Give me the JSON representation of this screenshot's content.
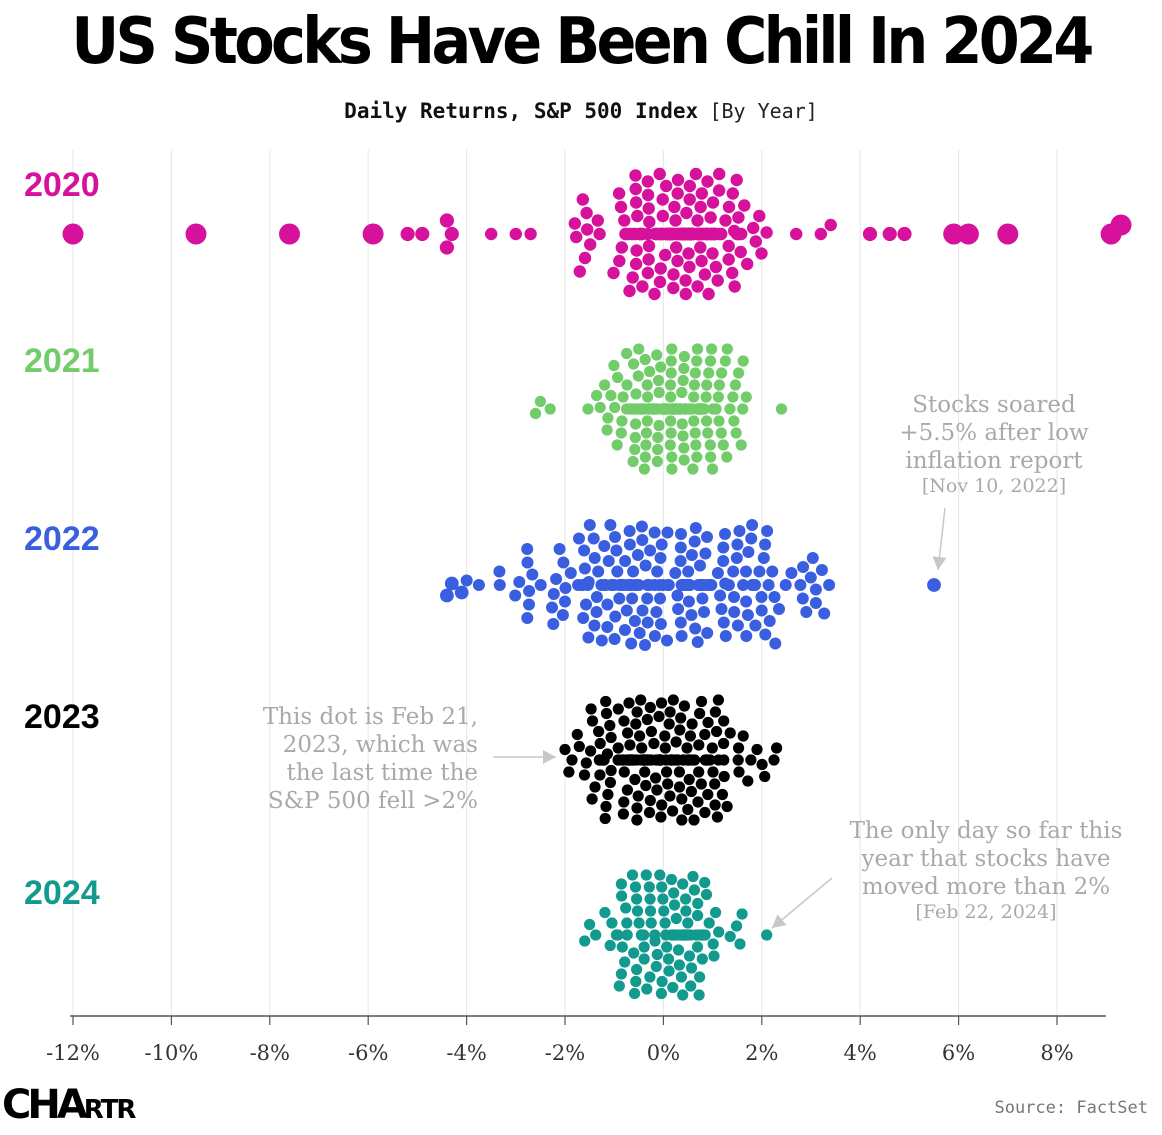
{
  "title": "US Stocks Have Been Chill In 2024",
  "subtitle": "Daily Returns, S&P 500 Index",
  "subtitle_note": "[By Year]",
  "source": "Source: FactSet",
  "logo": {
    "text_big": "CHA",
    "text_small": "RTR"
  },
  "colors": {
    "2020": "#d6119b",
    "2021": "#72cc6a",
    "2022": "#3a5ee0",
    "2023": "#000000",
    "2024": "#119a8d",
    "annotation": "#a9a9a9",
    "grid": "#e9e9e9"
  },
  "chart_data": {
    "type": "beeswarm",
    "xlabel": "",
    "ylabel": "",
    "xlim": [
      -12,
      9.2
    ],
    "x_ticks": [
      -12,
      -10,
      -8,
      -6,
      -4,
      -2,
      0,
      2,
      4,
      6,
      8
    ],
    "x_tick_labels": [
      "-12%",
      "-10%",
      "-8%",
      "-6%",
      "-4%",
      "-2%",
      "0%",
      "2%",
      "4%",
      "6%",
      "8%"
    ],
    "grid": "vertical",
    "series": [
      {
        "name": "2020",
        "distribution": {
          "mean": 0.25,
          "sd": 0.9,
          "count": 200
        },
        "extremes": [
          -12.0,
          -9.5,
          -7.6,
          -5.9,
          -5.2,
          -4.9,
          -4.4,
          -4.4,
          -4.3,
          -3.5,
          -3.0,
          -2.7,
          -1.7,
          -1.8,
          2.7,
          3.2,
          3.4,
          4.2,
          4.6,
          4.9,
          5.9,
          6.2,
          7.0,
          9.3,
          9.1
        ]
      },
      {
        "name": "2021",
        "distribution": {
          "mean": 0.15,
          "sd": 0.7,
          "count": 210
        },
        "extremes": [
          -2.6,
          -2.5,
          -2.3,
          2.4
        ]
      },
      {
        "name": "2022",
        "distribution": {
          "mean": -0.1,
          "sd": 1.5,
          "count": 205
        },
        "extremes": [
          -4.4,
          -4.3,
          -4.1,
          3.1,
          3.1,
          5.5
        ]
      },
      {
        "name": "2023",
        "distribution": {
          "mean": 0.05,
          "sd": 0.85,
          "count": 200
        },
        "extremes": [
          -2.0,
          2.3
        ]
      },
      {
        "name": "2024",
        "distribution": {
          "mean": 0.05,
          "sd": 0.65,
          "count": 110
        },
        "extremes": [
          -1.6,
          -1.5,
          1.6,
          2.1
        ]
      }
    ],
    "annotations": [
      {
        "series": "2022",
        "lines": [
          "Stocks soared",
          "+5.5% after low",
          "inflation report"
        ],
        "date": "[Nov 10, 2022]",
        "x": 5.5
      },
      {
        "series": "2023",
        "lines": [
          "This dot is Feb 21,",
          "2023, which was",
          "the last time the",
          "S&P 500 fell >2%"
        ],
        "date": "",
        "x": -2.0
      },
      {
        "series": "2024",
        "lines": [
          "The only day so far this",
          "year that stocks have",
          "moved more than 2%"
        ],
        "date": "[Feb 22, 2024]",
        "x": 2.1
      }
    ]
  }
}
